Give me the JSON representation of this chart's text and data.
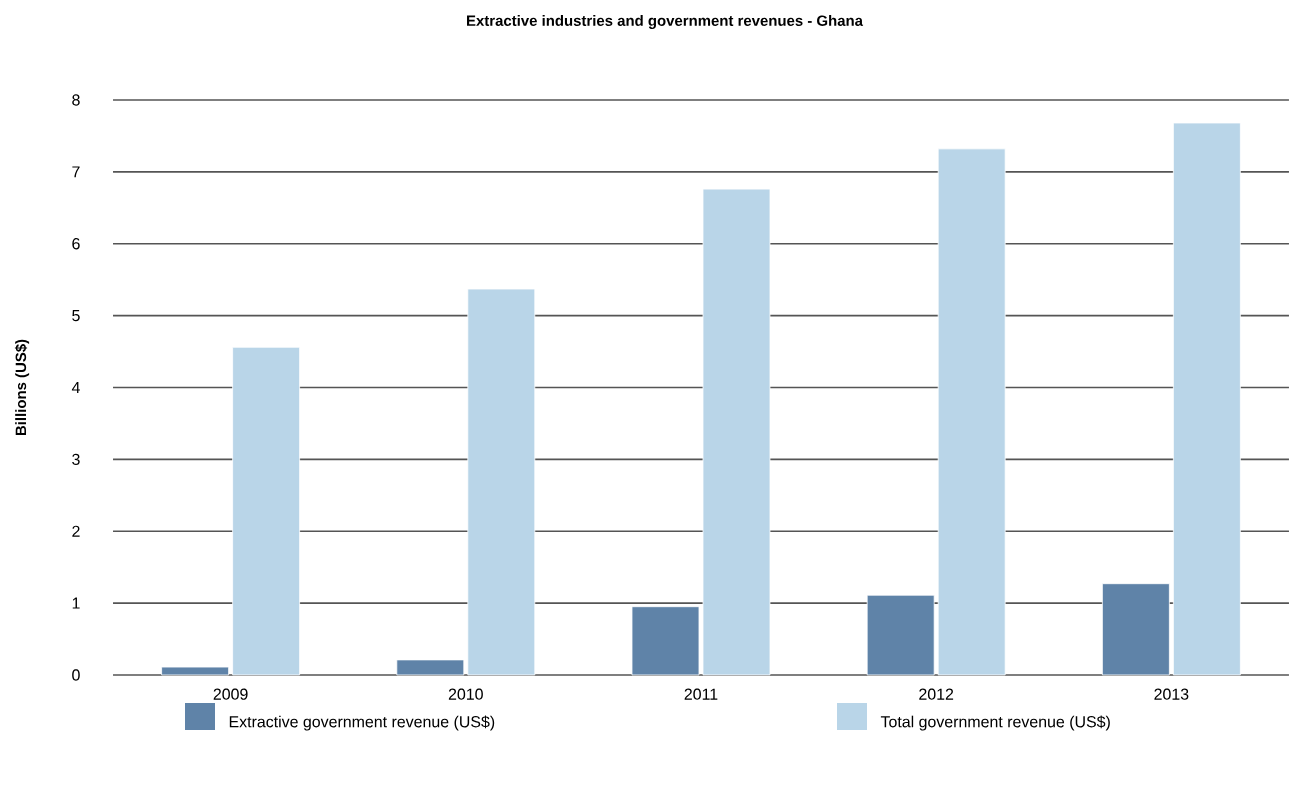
{
  "chart_data": {
    "type": "bar",
    "title": "Extractive industries and government revenues - Ghana",
    "ylabel": "Billions (US$)",
    "categories": [
      "2009",
      "2010",
      "2011",
      "2012",
      "2013"
    ],
    "series": [
      {
        "name": "Extractive government revenue (US$)",
        "color": "#5f83a8",
        "values": [
          0.11,
          0.21,
          0.95,
          1.11,
          1.27
        ]
      },
      {
        "name": "Total government revenue (US$)",
        "color": "#b9d5e8",
        "values": [
          4.56,
          5.37,
          6.76,
          7.32,
          7.68
        ]
      }
    ],
    "ylim": [
      0,
      8
    ],
    "yticks": [
      0,
      1,
      2,
      3,
      4,
      5,
      6,
      7,
      8
    ],
    "grid": "y",
    "legend": "bottom"
  }
}
